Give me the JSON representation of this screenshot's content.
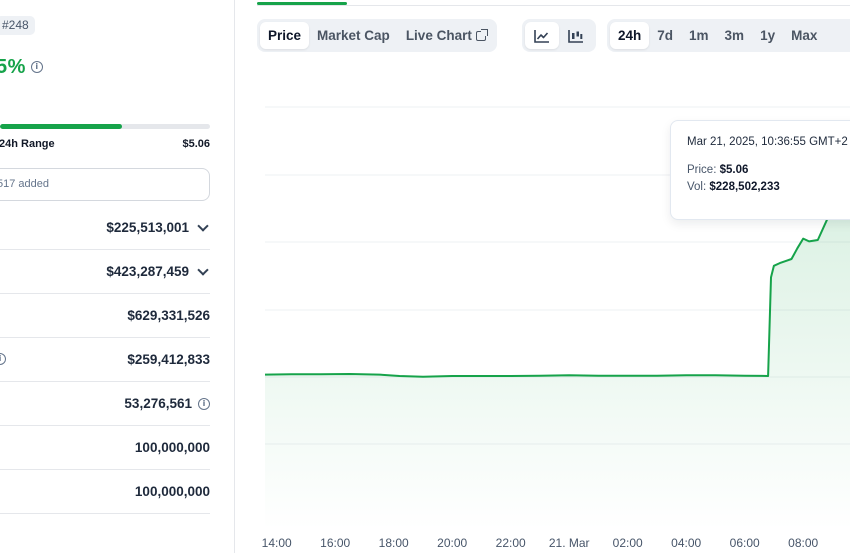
{
  "coin": {
    "rank_badge": "#248",
    "price_change": "5%",
    "range_label": "24h Range",
    "range_high": "$5.06",
    "range_fill_pct": 58,
    "watchlist_text": "517 added"
  },
  "stats": [
    {
      "value": "$225,513,001",
      "expandable": true,
      "info_before": false,
      "info_after": false
    },
    {
      "value": "$423,287,459",
      "expandable": true,
      "info_before": false,
      "info_after": false
    },
    {
      "value": "$629,331,526",
      "expandable": false,
      "info_before": false,
      "info_after": false
    },
    {
      "value": "$259,412,833",
      "expandable": false,
      "info_before": true,
      "info_after": false
    },
    {
      "value": "53,276,561",
      "expandable": false,
      "info_before": false,
      "info_after": true
    },
    {
      "value": "100,000,000",
      "expandable": false,
      "info_before": false,
      "info_after": false
    },
    {
      "value": "100,000,000",
      "expandable": false,
      "info_before": false,
      "info_after": false
    }
  ],
  "chart_tabs": {
    "price": "Price",
    "market_cap": "Market Cap",
    "live_chart": "Live Chart"
  },
  "chart_type_icons": [
    "line-chart-icon",
    "candlestick-chart-icon"
  ],
  "ranges": {
    "r24h": "24h",
    "r7d": "7d",
    "r1m": "1m",
    "r3m": "3m",
    "r1y": "1y",
    "max": "Max"
  },
  "tooltip": {
    "date": "Mar 21, 2025, 10:36:55 GMT+2",
    "price_label": "Price:",
    "price_value": "$5.06",
    "vol_label": "Vol:",
    "vol_value": "$228,502,233"
  },
  "colors": {
    "accent": "#16a34a",
    "line": "#16a34a"
  },
  "chart_data": {
    "type": "area",
    "x_ticks": [
      "14:00",
      "16:00",
      "18:00",
      "20:00",
      "22:00",
      "21. Mar",
      "02:00",
      "04:00",
      "06:00",
      "08:00"
    ],
    "x_hours": [
      14,
      16,
      18,
      20,
      22,
      24,
      26,
      28,
      30,
      32
    ],
    "x_range": [
      13.6,
      33.6
    ],
    "y_axis": "hidden",
    "grid": true,
    "series": [
      {
        "x": [
          13.6,
          14.5,
          15.5,
          16.5,
          17.5,
          18.2,
          19.0,
          20.0,
          21.0,
          22.0,
          23.0,
          24.0,
          25.0,
          26.0,
          27.0,
          28.0,
          29.0,
          30.0,
          30.8,
          30.9,
          31.0,
          31.2,
          31.4,
          31.6,
          31.8,
          32.0,
          32.2,
          32.5,
          32.9,
          33.2,
          33.6
        ],
        "y": [
          0.52,
          0.525,
          0.525,
          0.53,
          0.52,
          0.5,
          0.49,
          0.5,
          0.5,
          0.5,
          0.505,
          0.51,
          0.505,
          0.505,
          0.505,
          0.51,
          0.51,
          0.505,
          0.5,
          1.95,
          2.12,
          2.16,
          2.19,
          2.22,
          2.38,
          2.52,
          2.48,
          2.5,
          2.88,
          3.1,
          3.2
        ]
      }
    ]
  }
}
